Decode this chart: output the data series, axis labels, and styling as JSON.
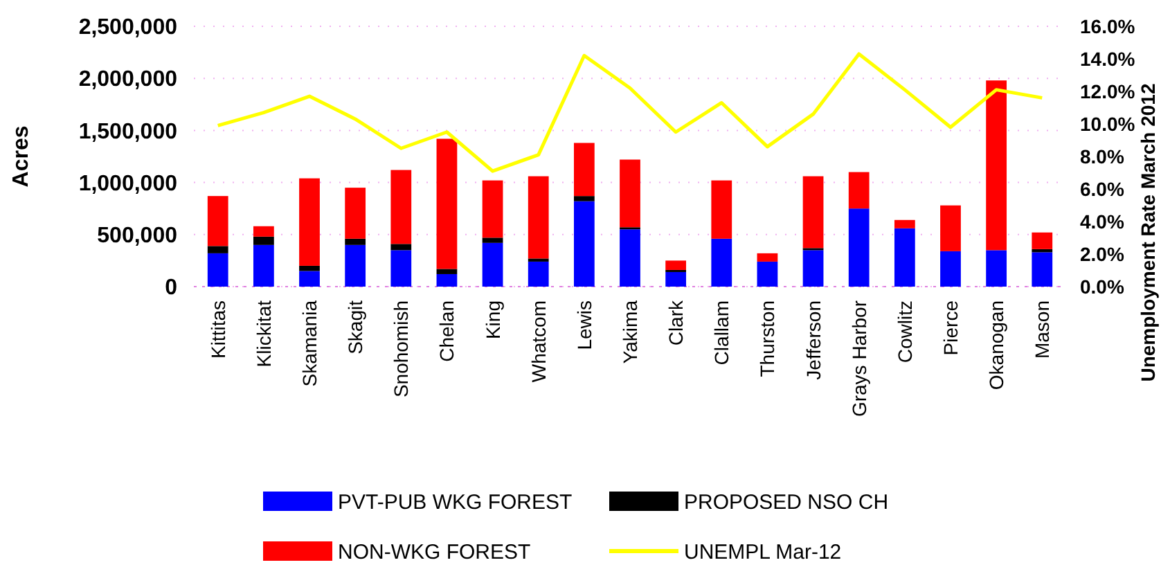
{
  "chart_data": {
    "type": "bar",
    "stacked": true,
    "categories": [
      "Kittitas",
      "Klickitat",
      "Skamania",
      "Skagit",
      "Snohomish",
      "Chelan",
      "King",
      "Whatcom",
      "Lewis",
      "Yakima",
      "Clark",
      "Clallam",
      "Thurston",
      "Jefferson",
      "Grays Harbor",
      "Cowlitz",
      "Pierce",
      "Okanogan",
      "Mason"
    ],
    "series": [
      {
        "name": "PVT-PUB WKG FOREST",
        "color": "#0000ff",
        "values": [
          320000,
          400000,
          150000,
          400000,
          350000,
          120000,
          420000,
          240000,
          820000,
          550000,
          140000,
          460000,
          240000,
          350000,
          750000,
          560000,
          340000,
          350000,
          330000
        ]
      },
      {
        "name": "PROPOSED NSO CH",
        "color": "#000000",
        "values": [
          70000,
          80000,
          50000,
          60000,
          60000,
          50000,
          50000,
          30000,
          50000,
          20000,
          20000,
          0,
          0,
          20000,
          0,
          0,
          0,
          0,
          30000
        ]
      },
      {
        "name": "NON-WKG FOREST",
        "color": "#ff0000",
        "values": [
          480000,
          100000,
          840000,
          490000,
          710000,
          1250000,
          550000,
          790000,
          510000,
          650000,
          90000,
          560000,
          80000,
          690000,
          350000,
          80000,
          440000,
          1630000,
          160000
        ]
      },
      {
        "name": "UNEMPL Mar-12",
        "type": "line",
        "axis": "y2",
        "color": "#ffff00",
        "values": [
          9.9,
          10.7,
          11.7,
          10.3,
          8.5,
          9.5,
          7.1,
          8.1,
          14.2,
          12.2,
          9.5,
          11.3,
          8.6,
          10.6,
          14.3,
          12.1,
          9.8,
          12.1,
          11.6
        ]
      }
    ],
    "ylabel": "Acres",
    "y2label": "Unemployment Rate March 2012",
    "ylim": [
      0,
      2500000
    ],
    "yticks": [
      {
        "value": 0,
        "label": "0"
      },
      {
        "value": 500000,
        "label": "500,000"
      },
      {
        "value": 1000000,
        "label": "1,000,000"
      },
      {
        "value": 1500000,
        "label": "1,500,000"
      },
      {
        "value": 2000000,
        "label": "2,000,000"
      },
      {
        "value": 2500000,
        "label": "2,500,000"
      }
    ],
    "y2lim": [
      0,
      16
    ],
    "y2ticks": [
      {
        "value": 0,
        "label": "0.0%"
      },
      {
        "value": 2,
        "label": "2.0%"
      },
      {
        "value": 4,
        "label": "4.0%"
      },
      {
        "value": 6,
        "label": "6.0%"
      },
      {
        "value": 8,
        "label": "8.0%"
      },
      {
        "value": 10,
        "label": "10.0%"
      },
      {
        "value": 12,
        "label": "12.0%"
      },
      {
        "value": 14,
        "label": "14.0%"
      },
      {
        "value": 16,
        "label": "16.0%"
      }
    ],
    "grid": "y",
    "legend": "bottom"
  }
}
